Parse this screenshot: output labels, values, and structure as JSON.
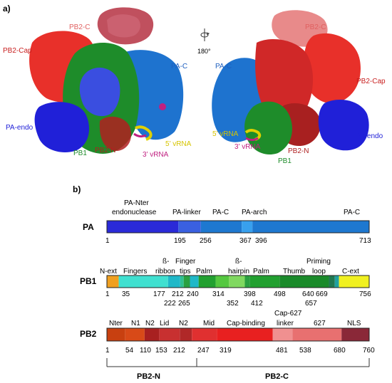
{
  "panel_a": {
    "panel_label": "a)",
    "rotation_label": "180°",
    "left_labels": {
      "pb2_c": "PB2-C",
      "pb2_cap": "PB2-Cap",
      "pa_c": "PA-C",
      "pa_endo": "PA-endo",
      "vrna_5": "5’ vRNA",
      "vrna_3": "3’ vRNA",
      "pb1": "PB1",
      "pb2_n": "PB2-N"
    },
    "right_labels": {
      "pb2_c": "PB2-C",
      "pa_c": "PA-C",
      "pb2_cap": "PB2-Cap",
      "pa_endo": "PA-endo",
      "vrna_5": "5’ vRNA",
      "vrna_3": "3’ vRNA",
      "pb2_n": "PB2-N",
      "pb1": "PB1"
    },
    "colors": {
      "pa_endo": "#2020d8",
      "pa_c": "#1e73cf",
      "pb1": "#1e8c2a",
      "pb2_cap": "#e8302a",
      "pb2_c": "#c0505e",
      "pb2_c_light": "#e88a8a",
      "pb2_n": "#b02020",
      "vrna5": "#e0d000",
      "vrna3": "#c02080",
      "blue_mid": "#3a4ee0"
    }
  },
  "panel_b": {
    "panel_label": "b)",
    "pa": {
      "name": "PA",
      "domain_labels": [
        "PA-Nter",
        "endonuclease",
        "PA-linker",
        "PA-C",
        "PA-arch",
        "PA-C"
      ],
      "tick_labels": [
        "1",
        "195",
        "256",
        "367",
        "396",
        "713"
      ],
      "segments": [
        {
          "start": 1,
          "end": 195,
          "color": "#2a2ad8"
        },
        {
          "start": 195,
          "end": 256,
          "color": "#3a60e0"
        },
        {
          "start": 256,
          "end": 367,
          "color": "#1e78d0"
        },
        {
          "start": 367,
          "end": 396,
          "color": "#38a0ee"
        },
        {
          "start": 396,
          "end": 713,
          "color": "#1e78d0"
        }
      ]
    },
    "pb1": {
      "name": "PB1",
      "domain_labels": [
        "N-ext",
        "Fingers",
        "ß-",
        "ribbon",
        "Finger",
        "tips",
        "Palm",
        "ß-",
        "hairpin",
        "Palm",
        "Thumb",
        "Priming",
        "loop",
        "C-ext"
      ],
      "tick_labels_top": [
        "1",
        "35",
        "177",
        "212",
        "240",
        "314",
        "398",
        "498",
        "640",
        "669",
        "756"
      ],
      "tick_labels_bottom": [
        "222",
        "265",
        "352",
        "412",
        "657"
      ],
      "segments": [
        {
          "start": 1,
          "end": 35,
          "color": "#f0a020"
        },
        {
          "start": 35,
          "end": 177,
          "color": "#40e0d0"
        },
        {
          "start": 177,
          "end": 212,
          "color": "#20b8c8"
        },
        {
          "start": 212,
          "end": 222,
          "color": "#30c090"
        },
        {
          "start": 222,
          "end": 240,
          "color": "#2aa040"
        },
        {
          "start": 240,
          "end": 265,
          "color": "#20b8c8"
        },
        {
          "start": 265,
          "end": 314,
          "color": "#22a030"
        },
        {
          "start": 314,
          "end": 352,
          "color": "#55c840"
        },
        {
          "start": 352,
          "end": 398,
          "color": "#80d860"
        },
        {
          "start": 398,
          "end": 412,
          "color": "#2aa040"
        },
        {
          "start": 412,
          "end": 498,
          "color": "#22a030"
        },
        {
          "start": 498,
          "end": 640,
          "color": "#1a8a2a"
        },
        {
          "start": 640,
          "end": 657,
          "color": "#207850"
        },
        {
          "start": 657,
          "end": 669,
          "color": "#20a0a0"
        },
        {
          "start": 669,
          "end": 756,
          "color": "#f0f020"
        }
      ]
    },
    "pb2": {
      "name": "PB2",
      "domain_labels": [
        "Nter",
        "N1",
        "N2",
        "Lid",
        "N2",
        "Mid",
        "Cap-binding",
        "Cap-627",
        "linker",
        "627",
        "NLS"
      ],
      "tick_labels": [
        "1",
        "54",
        "110",
        "153",
        "212",
        "247",
        "319",
        "481",
        "538",
        "680",
        "760"
      ],
      "segments": [
        {
          "start": 1,
          "end": 54,
          "color": "#c84010"
        },
        {
          "start": 54,
          "end": 110,
          "color": "#d84a18"
        },
        {
          "start": 110,
          "end": 153,
          "color": "#a82020"
        },
        {
          "start": 153,
          "end": 212,
          "color": "#c83030"
        },
        {
          "start": 212,
          "end": 247,
          "color": "#b02828"
        },
        {
          "start": 247,
          "end": 319,
          "color": "#e03030"
        },
        {
          "start": 319,
          "end": 481,
          "color": "#e82020"
        },
        {
          "start": 481,
          "end": 538,
          "color": "#f09090"
        },
        {
          "start": 538,
          "end": 680,
          "color": "#e87070"
        },
        {
          "start": 680,
          "end": 760,
          "color": "#8a2838"
        }
      ]
    },
    "bracket_labels": [
      "PB2-N",
      "PB2-C"
    ]
  }
}
